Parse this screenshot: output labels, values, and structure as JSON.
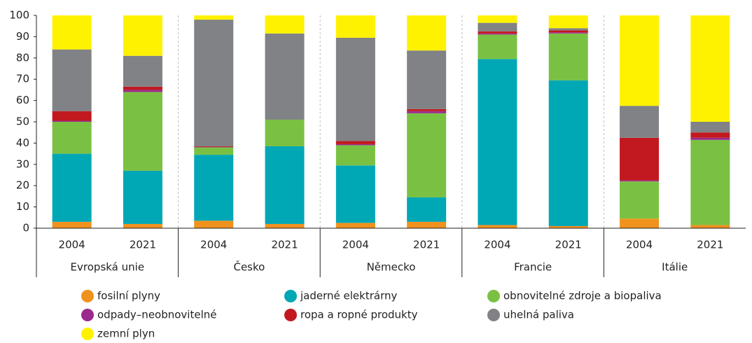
{
  "chart_data": {
    "type": "stacked_bar",
    "categories": [
      "2004",
      "2021",
      "2004",
      "2021",
      "2004",
      "2021",
      "2004",
      "2021",
      "2004",
      "2021"
    ],
    "groups": [
      "Evropská unie",
      "Česko",
      "Německo",
      "Francie",
      "Itálie"
    ],
    "series": [
      {
        "name": "fosilní plyny",
        "color": "#f0921e",
        "values": [
          3,
          2,
          3.5,
          2,
          2.5,
          3,
          1.5,
          1,
          4.5,
          1.5
        ]
      },
      {
        "name": "jaderné elektrárny",
        "color": "#00a7b5",
        "values": [
          32,
          25,
          31,
          36.5,
          27,
          11.5,
          78,
          68.5,
          0,
          0
        ]
      },
      {
        "name": "obnovitelné zdroje a biopaliva",
        "color": "#7ac143",
        "values": [
          15,
          37,
          3.5,
          12.5,
          9.5,
          39.5,
          11.5,
          22,
          17.5,
          40
        ]
      },
      {
        "name": "odpady–neobnovitelné",
        "color": "#9b2a8e",
        "values": [
          0.5,
          1,
          0.2,
          0,
          0.5,
          1,
          0.5,
          0.5,
          0.5,
          1
        ]
      },
      {
        "name": "ropa a ropné produkty",
        "color": "#c1191f",
        "values": [
          4.5,
          1.5,
          0.3,
          0,
          1.5,
          1,
          1,
          1,
          20,
          2.5
        ]
      },
      {
        "name": "uhelná paliva",
        "color": "#808285",
        "values": [
          29,
          14.5,
          59.5,
          40.5,
          48.5,
          27.5,
          4,
          1,
          15,
          5
        ]
      },
      {
        "name": "zemní plyn",
        "color": "#fff200",
        "values": [
          16,
          19,
          2,
          8.5,
          10.5,
          16.5,
          3.5,
          6,
          42.5,
          50
        ]
      }
    ],
    "ylim": [
      0,
      100
    ],
    "yticks": [
      0,
      10,
      20,
      30,
      40,
      50,
      60,
      70,
      80,
      90,
      100
    ]
  }
}
